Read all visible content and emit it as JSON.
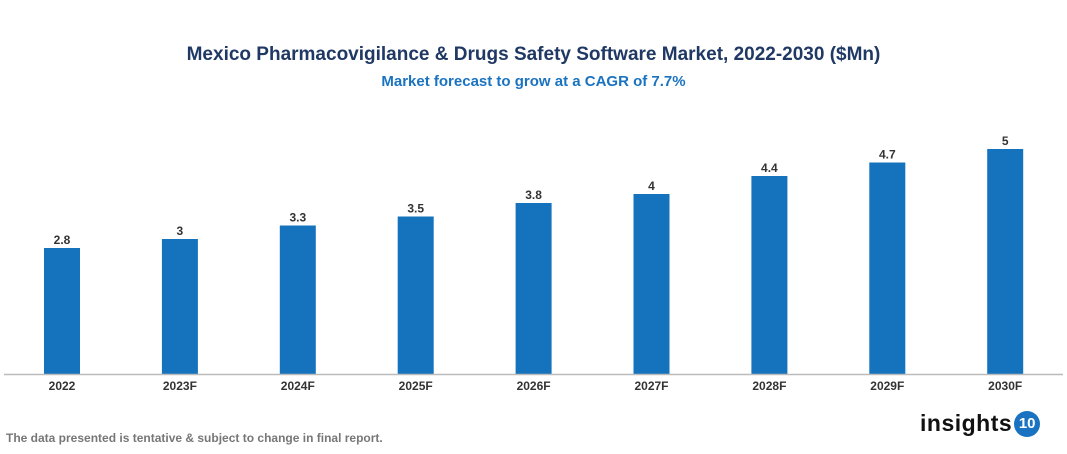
{
  "chart_data": {
    "type": "bar",
    "title": "Mexico Pharmacovigilance & Drugs Safety Software Market, 2022-2030 ($Mn)",
    "subtitle": "Market forecast to grow at a CAGR of 7.7%",
    "categories": [
      "2022",
      "2023F",
      "2024F",
      "2025F",
      "2026F",
      "2027F",
      "2028F",
      "2029F",
      "2030F"
    ],
    "values": [
      2.8,
      3,
      3.3,
      3.5,
      3.8,
      4,
      4.4,
      4.7,
      5
    ],
    "data_labels": [
      "2.8",
      "3",
      "3.3",
      "3.5",
      "3.8",
      "4",
      "4.4",
      "4.7",
      "5"
    ],
    "xlabel": "",
    "ylabel": "",
    "ylim": [
      0,
      5
    ],
    "grid": false,
    "bar_color": "#1573be"
  },
  "footnote": "The data presented is tentative & subject to change in final report.",
  "logo": {
    "text": "insights",
    "badge": "10"
  }
}
